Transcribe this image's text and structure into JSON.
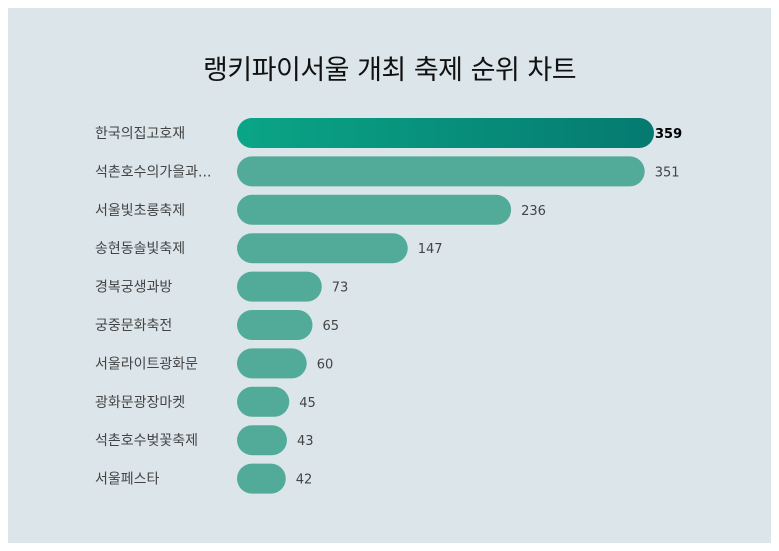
{
  "colors": {
    "background": "#dce6ea",
    "bar": "#52ab98",
    "bar_highlight_start": "#0aa587",
    "bar_highlight_end": "#057a70",
    "label_text": "#444444",
    "value_text": "#444444"
  },
  "chart_data": {
    "type": "bar",
    "orientation": "horizontal",
    "title": "랭키파이서울 개최 축제 순위 차트",
    "xlabel": "",
    "ylabel": "",
    "grid": false,
    "categories": [
      "한국의집고호재",
      "석촌호수의가을과...",
      "서울빛초롱축제",
      "송현동솔빛축제",
      "경복궁생과방",
      "궁중문화축전",
      "서울라이트광화문",
      "광화문광장마켓",
      "석촌호수벚꽃축제",
      "서울페스타"
    ],
    "values": [
      359,
      351,
      236,
      147,
      73,
      65,
      60,
      45,
      43,
      42
    ],
    "xlim": [
      0,
      359
    ],
    "highlight_index": 0
  }
}
